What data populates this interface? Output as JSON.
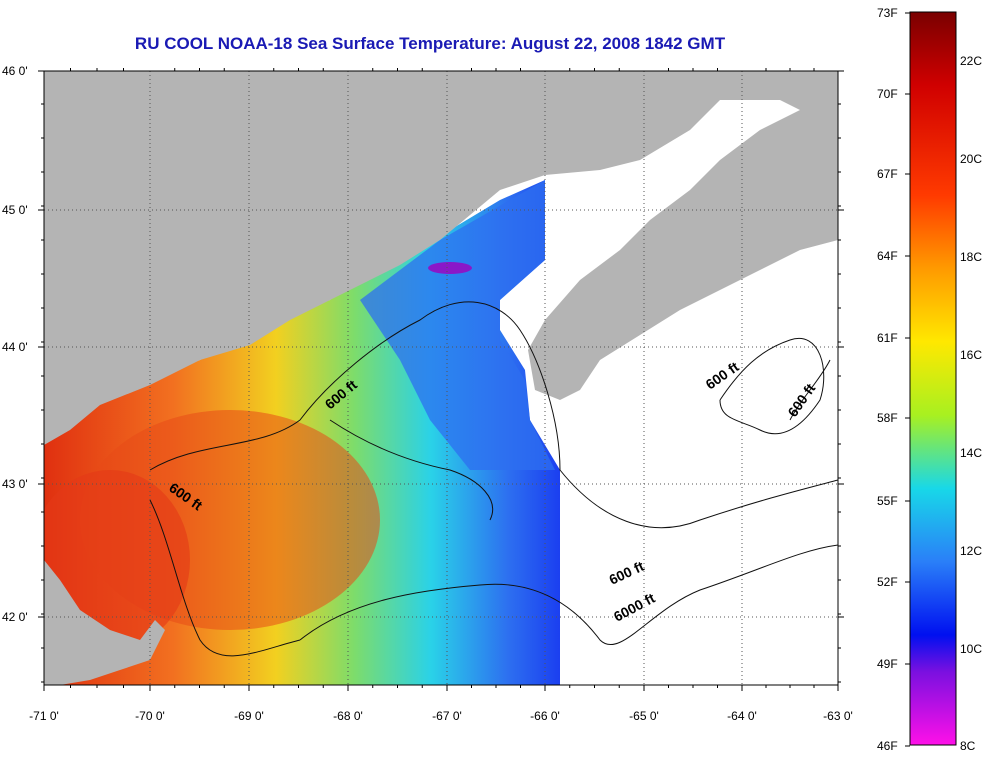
{
  "title": "RU COOL  NOAA-18  Sea Surface Temperature:  August 22, 2008 1842 GMT",
  "map": {
    "lon_ticks": [
      "-71 0'",
      "-70 0'",
      "-69 0'",
      "-68 0'",
      "-67 0'",
      "-66 0'",
      "-65 0'",
      "-64 0'",
      "-63 0'"
    ],
    "lat_ticks": [
      "46 0'",
      "45 0'",
      "44 0'",
      "43 0'",
      "42 0'"
    ],
    "contour_labels": [
      "600 ft",
      "600 ft",
      "600 ft",
      "600 ft",
      "600 ft",
      "6000 ft"
    ],
    "colors": {
      "land": "#b4b4b4",
      "no_data": "#ffffff",
      "grid": "#666666"
    }
  },
  "colorbar": {
    "f_labels": [
      "73F",
      "70F",
      "67F",
      "64F",
      "61F",
      "58F",
      "55F",
      "52F",
      "49F",
      "46F"
    ],
    "c_labels": [
      "22C",
      "20C",
      "18C",
      "16C",
      "14C",
      "12C",
      "10C",
      "8C"
    ]
  }
}
